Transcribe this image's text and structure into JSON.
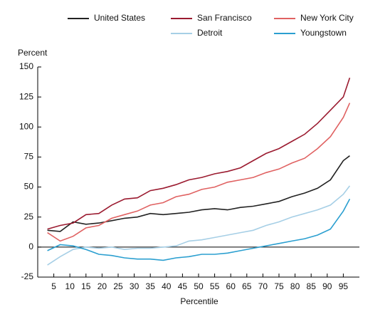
{
  "chart_data": {
    "type": "line",
    "y_label": "Percent",
    "x_label": "Percentile",
    "x": [
      3,
      7,
      11,
      15,
      19,
      23,
      27,
      31,
      35,
      39,
      43,
      47,
      51,
      55,
      59,
      63,
      67,
      71,
      75,
      79,
      83,
      87,
      91,
      95,
      97
    ],
    "series": [
      {
        "name": "United States",
        "color": "#222222",
        "values": [
          14,
          13,
          21,
          19,
          20,
          22,
          24,
          25,
          28,
          27,
          28,
          29,
          31,
          32,
          31,
          33,
          34,
          36,
          38,
          42,
          45,
          49,
          56,
          72,
          76
        ]
      },
      {
        "name": "San Francisco",
        "color": "#9b1b30",
        "values": [
          15,
          18,
          20,
          27,
          28,
          35,
          40,
          41,
          47,
          49,
          52,
          56,
          58,
          61,
          63,
          66,
          72,
          78,
          82,
          88,
          94,
          103,
          114,
          125,
          141
        ]
      },
      {
        "name": "New York City",
        "color": "#e06262",
        "values": [
          12,
          5,
          9,
          16,
          18,
          24,
          27,
          30,
          35,
          37,
          42,
          44,
          48,
          50,
          54,
          56,
          58,
          62,
          65,
          70,
          74,
          82,
          92,
          108,
          120
        ]
      },
      {
        "name": "Detroit",
        "color": "#a6cfe6",
        "values": [
          -15,
          -8,
          -2,
          0,
          -1,
          0,
          -2,
          -1,
          -1,
          0,
          1,
          5,
          6,
          8,
          10,
          12,
          14,
          18,
          21,
          25,
          28,
          31,
          35,
          44,
          51
        ]
      },
      {
        "name": "Youngstown",
        "color": "#2b9fd0",
        "values": [
          -3,
          2,
          1,
          -2,
          -6,
          -7,
          -9,
          -10,
          -10,
          -11,
          -9,
          -8,
          -6,
          -6,
          -5,
          -3,
          -1,
          1,
          3,
          5,
          7,
          10,
          15,
          30,
          40
        ]
      }
    ],
    "xlim": [
      0,
      100
    ],
    "ylim": [
      -25,
      150
    ],
    "xticks": [
      5,
      10,
      15,
      20,
      25,
      30,
      35,
      40,
      45,
      50,
      55,
      60,
      65,
      70,
      75,
      80,
      85,
      90,
      95
    ],
    "yticks": [
      -25,
      0,
      25,
      50,
      75,
      100,
      125,
      150
    ],
    "grid": false
  }
}
